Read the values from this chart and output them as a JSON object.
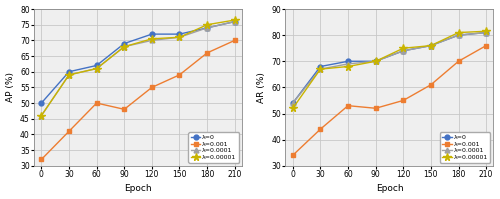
{
  "epochs": [
    0,
    30,
    60,
    90,
    120,
    150,
    180,
    210
  ],
  "ap": {
    "lambda0": [
      50,
      60,
      62,
      69,
      72,
      72,
      74,
      76
    ],
    "lambda001": [
      32,
      41,
      50,
      48,
      55,
      59,
      66,
      70
    ],
    "lambda0001": [
      46,
      59,
      61,
      68,
      70,
      71,
      74,
      76
    ],
    "lambda00001": [
      46,
      59,
      61,
      68,
      70.5,
      71,
      75,
      76.5
    ]
  },
  "ar": {
    "lambda0": [
      54,
      68,
      70,
      70,
      74,
      76,
      80,
      81
    ],
    "lambda001": [
      34,
      44,
      53,
      52,
      55,
      61,
      70,
      76
    ],
    "lambda0001": [
      54,
      67,
      69,
      70,
      74,
      76,
      80,
      81
    ],
    "lambda00001": [
      52,
      67,
      68,
      70,
      75,
      76,
      81,
      81.5
    ]
  },
  "colors": {
    "lambda0": "#4472C4",
    "lambda001": "#ED7D31",
    "lambda0001": "#A0A0A0",
    "lambda00001": "#C9B400"
  },
  "markers": {
    "lambda0": "o",
    "lambda001": "s",
    "lambda0001": "^",
    "lambda00001": "*"
  },
  "labels": {
    "lambda0": "λ=0",
    "lambda001": "λ=0.001",
    "lambda0001": "λ=0.0001",
    "lambda00001": "λ=0.00001"
  },
  "ap_ylim": [
    30,
    80
  ],
  "ar_ylim": [
    30,
    90
  ],
  "ap_yticks": [
    30,
    35,
    40,
    45,
    50,
    55,
    60,
    65,
    70,
    75,
    80
  ],
  "ar_yticks": [
    30,
    40,
    50,
    60,
    70,
    80,
    90
  ],
  "xticks": [
    0,
    30,
    60,
    90,
    120,
    150,
    180,
    210
  ],
  "xlabel": "Epoch",
  "ap_ylabel": "AP (%)",
  "ar_ylabel": "AR (%)",
  "grid_color": "#C8C8C8",
  "bg_color": "#EFEFEF",
  "linewidth": 1.0,
  "markersize": 3.5,
  "markersize_star": 5.5,
  "legend_fontsize": 4.5,
  "tick_fontsize": 5.5,
  "label_fontsize": 6.5
}
